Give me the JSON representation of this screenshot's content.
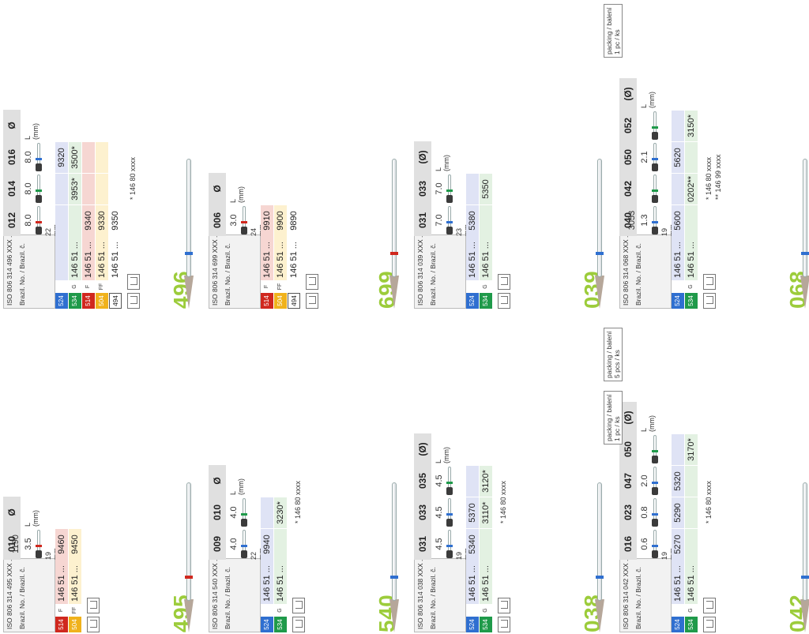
{
  "cards": [
    {
      "id": "496",
      "iso": "ISO 806 314 496 XXX ...",
      "brazil": "Brazil. No. / Brazil. č.",
      "sizes": [
        "012",
        "014",
        "016",
        "Ø"
      ],
      "lengths": [
        "8.0",
        "8.0",
        "8.0"
      ],
      "lunit": "L (mm)",
      "shank_len": "22 mm",
      "band": "#2f6fd0",
      "bur_bands": [
        "#d0281e",
        "#1f9a4a",
        "#2f6fd0"
      ],
      "rows": [
        {
          "code": "524",
          "color": "#2f6fd0",
          "bg": "#dfe3f5",
          "grit": "",
          "base": "",
          "cells": [
            "",
            "",
            "9320"
          ]
        },
        {
          "code": "534",
          "color": "#1f9a4a",
          "bg": "#e3f1e2",
          "grit": "G",
          "base": "146 51 ...",
          "cells": [
            "",
            "3953*",
            "3500*"
          ]
        },
        {
          "code": "514",
          "color": "#d0281e",
          "bg": "#f6d6d2",
          "grit": "F",
          "base": "146 51 ...",
          "cells": [
            "9340",
            "",
            ""
          ]
        },
        {
          "code": "504",
          "color": "#f0b21c",
          "bg": "#fdf1cf",
          "grit": "FF",
          "base": "146 51 ...",
          "cells": [
            "9330",
            "",
            ""
          ]
        },
        {
          "code": "494",
          "color": "#ffffff",
          "bg": "#ffffff",
          "grit": "",
          "base": "146 51 ...",
          "cells": [
            "9350",
            "",
            ""
          ]
        }
      ],
      "note": "* 146 80 xxxx",
      "packing": ""
    },
    {
      "id": "495",
      "iso": "ISO 806 314 495 XXX ...",
      "brazil": "Brazil. No. / Brazil. č.",
      "sizes": [
        "010",
        "Ø"
      ],
      "lengths": [
        "3.5"
      ],
      "extra_size": "1190",
      "lunit": "L (mm)",
      "shank_len": "19 mm",
      "band": "#d0281e",
      "bur_bands": [
        "#d0281e"
      ],
      "rows": [
        {
          "code": "514",
          "color": "#d0281e",
          "bg": "#f6d6d2",
          "grit": "F",
          "base": "146 51 ...",
          "cells": [
            "9460"
          ]
        },
        {
          "code": "504",
          "color": "#f0b21c",
          "bg": "#fdf1cf",
          "grit": "FF",
          "base": "146 51 ...",
          "cells": [
            "9450"
          ]
        }
      ],
      "note": "",
      "packing": ""
    },
    {
      "id": "699",
      "iso": "ISO 806 314 699 XXX ...",
      "brazil": "Brazil. No. / Brazil. č.",
      "sizes": [
        "006",
        "Ø"
      ],
      "lengths": [
        "3.0"
      ],
      "lunit": "L (mm)",
      "shank_len": "24 mm",
      "band": "#d0281e",
      "bur_bands": [
        "#d0281e"
      ],
      "rows": [
        {
          "code": "514",
          "color": "#d0281e",
          "bg": "#f6d6d2",
          "grit": "F",
          "base": "146 51 ...",
          "cells": [
            "9910"
          ]
        },
        {
          "code": "504",
          "color": "#f0b21c",
          "bg": "#fdf1cf",
          "grit": "FF",
          "base": "146 51 ...",
          "cells": [
            "9900"
          ]
        },
        {
          "code": "494",
          "color": "#ffffff",
          "bg": "#ffffff",
          "grit": "",
          "base": "146 51 ...",
          "cells": [
            "9890"
          ]
        }
      ],
      "note": "",
      "packing": ""
    },
    {
      "id": "540",
      "iso": "ISO 806 314 540 XXX ...",
      "brazil": "Brazil. No. / Brazil. č.",
      "sizes": [
        "009",
        "010",
        "Ø"
      ],
      "lengths": [
        "4.0",
        "4.0"
      ],
      "lunit": "L (mm)",
      "shank_len": "22 mm",
      "band": "#2f6fd0",
      "bur_bands": [
        "#2f6fd0",
        "#1f9a4a"
      ],
      "rows": [
        {
          "code": "524",
          "color": "#2f6fd0",
          "bg": "#dfe3f5",
          "grit": "",
          "base": "146 51 ...",
          "cells": [
            "9940",
            ""
          ]
        },
        {
          "code": "534",
          "color": "#1f9a4a",
          "bg": "#e3f1e2",
          "grit": "G",
          "base": "146 51 ...",
          "cells": [
            "",
            "3230*"
          ]
        }
      ],
      "note": "* 146 80 xxxx",
      "packing": ""
    },
    {
      "id": "039",
      "iso": "ISO 806 314 039 XXX ...",
      "brazil": "Brazil. No. / Brazil. č.",
      "sizes": [
        "031",
        "033",
        "(Ø)"
      ],
      "lengths": [
        "7.0",
        "7.0"
      ],
      "lunit": "L (mm)",
      "shank_len": "23 mm",
      "band": "#2f6fd0",
      "bur_bands": [
        "#2f6fd0",
        "#1f9a4a"
      ],
      "rows": [
        {
          "code": "524",
          "color": "#2f6fd0",
          "bg": "#dfe3f5",
          "grit": "",
          "base": "146 51 ...",
          "cells": [
            "5380",
            ""
          ]
        },
        {
          "code": "534",
          "color": "#1f9a4a",
          "bg": "#e3f1e2",
          "grit": "G",
          "base": "146 51 ...",
          "cells": [
            "",
            "5350"
          ]
        }
      ],
      "note": "",
      "packing": ""
    },
    {
      "id": "038",
      "iso": "ISO 806 314 038 XXX ...",
      "brazil": "Brazil. No. / Brazil. č.",
      "sizes": [
        "031",
        "033",
        "035",
        "(Ø)"
      ],
      "lengths": [
        "4.5",
        "4.5",
        "4.5"
      ],
      "lunit": "L (mm)",
      "shank_len": "19 mm",
      "band": "#2f6fd0",
      "bur_bands": [
        "#2f6fd0",
        "#2f6fd0",
        "#1f9a4a"
      ],
      "rows": [
        {
          "code": "524",
          "color": "#2f6fd0",
          "bg": "#dfe3f5",
          "grit": "",
          "base": "146 51 ...",
          "cells": [
            "5340",
            "5370",
            ""
          ]
        },
        {
          "code": "534",
          "color": "#1f9a4a",
          "bg": "#e3f1e2",
          "grit": "G",
          "base": "146 51 ...",
          "cells": [
            "",
            "3110*",
            "3120*"
          ]
        }
      ],
      "note": "* 146 80 xxxx",
      "packing": ""
    },
    {
      "id": "068",
      "iso": "ISO 806 314 068 XXX ...",
      "brazil": "Brazil. No. / Brazil. č.",
      "sizes": [
        "040",
        "042",
        "050",
        "052",
        "(Ø)"
      ],
      "lengths": [
        "1.3",
        "",
        "2.1",
        ""
      ],
      "extra_size": "3053",
      "lunit": "L (mm)",
      "shank_len": "19 mm",
      "band": "#2f6fd0",
      "bur_bands": [
        "#2f6fd0",
        "#1f9a4a",
        "#2f6fd0",
        "#1f9a4a"
      ],
      "rows": [
        {
          "code": "524",
          "color": "#2f6fd0",
          "bg": "#dfe3f5",
          "grit": "",
          "base": "146 51 ...",
          "cells": [
            "5600",
            "",
            "5620",
            ""
          ]
        },
        {
          "code": "534",
          "color": "#1f9a4a",
          "bg": "#e3f1e2",
          "grit": "G",
          "base": "146 51 ...",
          "cells": [
            "",
            "0202**",
            "",
            "3150*"
          ]
        }
      ],
      "note": "* 146 80 xxxx",
      "note2": "** 146 99 xxxx",
      "packing": "packing / balení",
      "packing2": "1 pc / ks"
    },
    {
      "id": "042",
      "iso": "ISO 806 314 042 XXX ...",
      "brazil": "Brazil. No. / Brazil. č.",
      "sizes": [
        "016",
        "023",
        "047",
        "050",
        "(Ø)"
      ],
      "lengths": [
        "0.6",
        "0.8",
        "2.0",
        ""
      ],
      "lunit": "L (mm)",
      "shank_len": "19 mm",
      "band": "#2f6fd0",
      "bur_bands": [
        "#2f6fd0",
        "#2f6fd0",
        "#2f6fd0",
        "#1f9a4a"
      ],
      "rows": [
        {
          "code": "524",
          "color": "#2f6fd0",
          "bg": "#dfe3f5",
          "grit": "",
          "base": "146 51 ...",
          "cells": [
            "5270",
            "5290",
            "5320",
            ""
          ]
        },
        {
          "code": "534",
          "color": "#1f9a4a",
          "bg": "#e3f1e2",
          "grit": "G",
          "base": "146 51 ...",
          "cells": [
            "",
            "",
            "",
            "3170*"
          ]
        }
      ],
      "note": "* 146 80 xxxx",
      "packing": "packing / balení",
      "packing2": "5 pcs / ks",
      "packing_b": "packing / balení",
      "packing_b2": "1 pc / ks"
    }
  ]
}
